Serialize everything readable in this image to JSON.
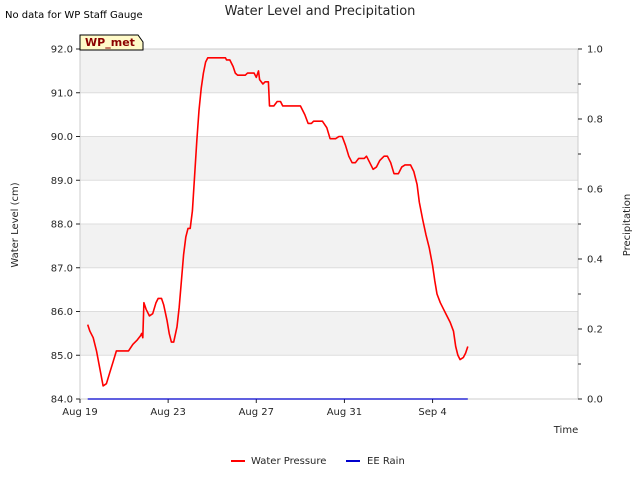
{
  "chart_data": {
    "type": "line",
    "title": "Water Level and Precipitation",
    "top_left_note": "No data for WP Staff Gauge",
    "badge": "WP_met",
    "xlabel": "Time",
    "ylabel_left": "Water Level (cm)",
    "ylabel_right": "Precipitation",
    "x_range_days": [
      0,
      22.6
    ],
    "xticks": [
      {
        "day": 0,
        "label": "Aug 19"
      },
      {
        "day": 4,
        "label": "Aug 23"
      },
      {
        "day": 8,
        "label": "Aug 27"
      },
      {
        "day": 12,
        "label": "Aug 31"
      },
      {
        "day": 16,
        "label": "Sep 4"
      }
    ],
    "ylim_left": [
      84.0,
      92.0
    ],
    "yticks_left": [
      "84.0",
      "85.0",
      "86.0",
      "87.0",
      "88.0",
      "89.0",
      "90.0",
      "91.0",
      "92.0"
    ],
    "ylim_right": [
      0.0,
      1.0
    ],
    "yticks_right": [
      "0.0",
      "0.2",
      "0.4",
      "0.6",
      "0.8",
      "1.0"
    ],
    "grid": "horizontal bands",
    "legend_placement": "bottom-center",
    "series": [
      {
        "name": "Water Pressure",
        "color": "#ff0000",
        "axis": "left",
        "points": [
          [
            0.35,
            85.7
          ],
          [
            0.45,
            85.55
          ],
          [
            0.6,
            85.4
          ],
          [
            0.75,
            85.1
          ],
          [
            0.9,
            84.7
          ],
          [
            1.05,
            84.3
          ],
          [
            1.2,
            84.35
          ],
          [
            1.35,
            84.6
          ],
          [
            1.5,
            84.85
          ],
          [
            1.65,
            85.1
          ],
          [
            2.0,
            85.1
          ],
          [
            2.2,
            85.1
          ],
          [
            2.4,
            85.25
          ],
          [
            2.6,
            85.35
          ],
          [
            2.75,
            85.45
          ],
          [
            2.8,
            85.5
          ],
          [
            2.85,
            85.4
          ],
          [
            2.9,
            86.2
          ],
          [
            3.0,
            86.05
          ],
          [
            3.15,
            85.9
          ],
          [
            3.3,
            85.95
          ],
          [
            3.45,
            86.2
          ],
          [
            3.55,
            86.3
          ],
          [
            3.7,
            86.3
          ],
          [
            3.8,
            86.15
          ],
          [
            3.95,
            85.8
          ],
          [
            4.05,
            85.5
          ],
          [
            4.15,
            85.3
          ],
          [
            4.25,
            85.3
          ],
          [
            4.4,
            85.65
          ],
          [
            4.5,
            86.1
          ],
          [
            4.6,
            86.7
          ],
          [
            4.7,
            87.3
          ],
          [
            4.8,
            87.7
          ],
          [
            4.9,
            87.9
          ],
          [
            5.0,
            87.9
          ],
          [
            5.1,
            88.3
          ],
          [
            5.2,
            89.1
          ],
          [
            5.3,
            89.9
          ],
          [
            5.4,
            90.6
          ],
          [
            5.5,
            91.1
          ],
          [
            5.6,
            91.45
          ],
          [
            5.7,
            91.7
          ],
          [
            5.8,
            91.8
          ],
          [
            6.0,
            91.8
          ],
          [
            6.3,
            91.8
          ],
          [
            6.6,
            91.8
          ],
          [
            6.65,
            91.75
          ],
          [
            6.8,
            91.75
          ],
          [
            6.95,
            91.6
          ],
          [
            7.05,
            91.45
          ],
          [
            7.15,
            91.4
          ],
          [
            7.5,
            91.4
          ],
          [
            7.6,
            91.45
          ],
          [
            7.9,
            91.45
          ],
          [
            8.0,
            91.35
          ],
          [
            8.1,
            91.5
          ],
          [
            8.15,
            91.3
          ],
          [
            8.3,
            91.2
          ],
          [
            8.4,
            91.25
          ],
          [
            8.55,
            91.25
          ],
          [
            8.6,
            90.7
          ],
          [
            8.8,
            90.7
          ],
          [
            8.95,
            90.8
          ],
          [
            9.1,
            90.8
          ],
          [
            9.2,
            90.7
          ],
          [
            9.7,
            90.7
          ],
          [
            10.0,
            90.7
          ],
          [
            10.2,
            90.5
          ],
          [
            10.35,
            90.3
          ],
          [
            10.5,
            90.3
          ],
          [
            10.6,
            90.35
          ],
          [
            11.0,
            90.35
          ],
          [
            11.2,
            90.2
          ],
          [
            11.35,
            89.95
          ],
          [
            11.6,
            89.95
          ],
          [
            11.75,
            90.0
          ],
          [
            11.9,
            90.0
          ],
          [
            12.05,
            89.8
          ],
          [
            12.2,
            89.55
          ],
          [
            12.35,
            89.4
          ],
          [
            12.5,
            89.4
          ],
          [
            12.65,
            89.5
          ],
          [
            12.9,
            89.5
          ],
          [
            13.0,
            89.55
          ],
          [
            13.15,
            89.4
          ],
          [
            13.3,
            89.25
          ],
          [
            13.45,
            89.3
          ],
          [
            13.6,
            89.45
          ],
          [
            13.8,
            89.55
          ],
          [
            13.95,
            89.55
          ],
          [
            14.1,
            89.4
          ],
          [
            14.25,
            89.15
          ],
          [
            14.45,
            89.15
          ],
          [
            14.6,
            89.3
          ],
          [
            14.75,
            89.35
          ],
          [
            15.0,
            89.35
          ],
          [
            15.15,
            89.2
          ],
          [
            15.3,
            88.9
          ],
          [
            15.4,
            88.5
          ],
          [
            15.55,
            88.1
          ],
          [
            15.7,
            87.75
          ],
          [
            15.85,
            87.45
          ],
          [
            16.0,
            87.05
          ],
          [
            16.1,
            86.7
          ],
          [
            16.2,
            86.4
          ],
          [
            16.35,
            86.2
          ],
          [
            16.5,
            86.05
          ],
          [
            16.65,
            85.9
          ],
          [
            16.8,
            85.75
          ],
          [
            16.95,
            85.55
          ],
          [
            17.05,
            85.2
          ],
          [
            17.15,
            85.0
          ],
          [
            17.25,
            84.9
          ],
          [
            17.4,
            84.95
          ],
          [
            17.5,
            85.05
          ],
          [
            17.6,
            85.2
          ]
        ]
      },
      {
        "name": "EE Rain",
        "color": "#0000cd",
        "axis": "right",
        "points": [
          [
            0.35,
            0.0
          ],
          [
            17.6,
            0.0
          ]
        ]
      }
    ]
  }
}
